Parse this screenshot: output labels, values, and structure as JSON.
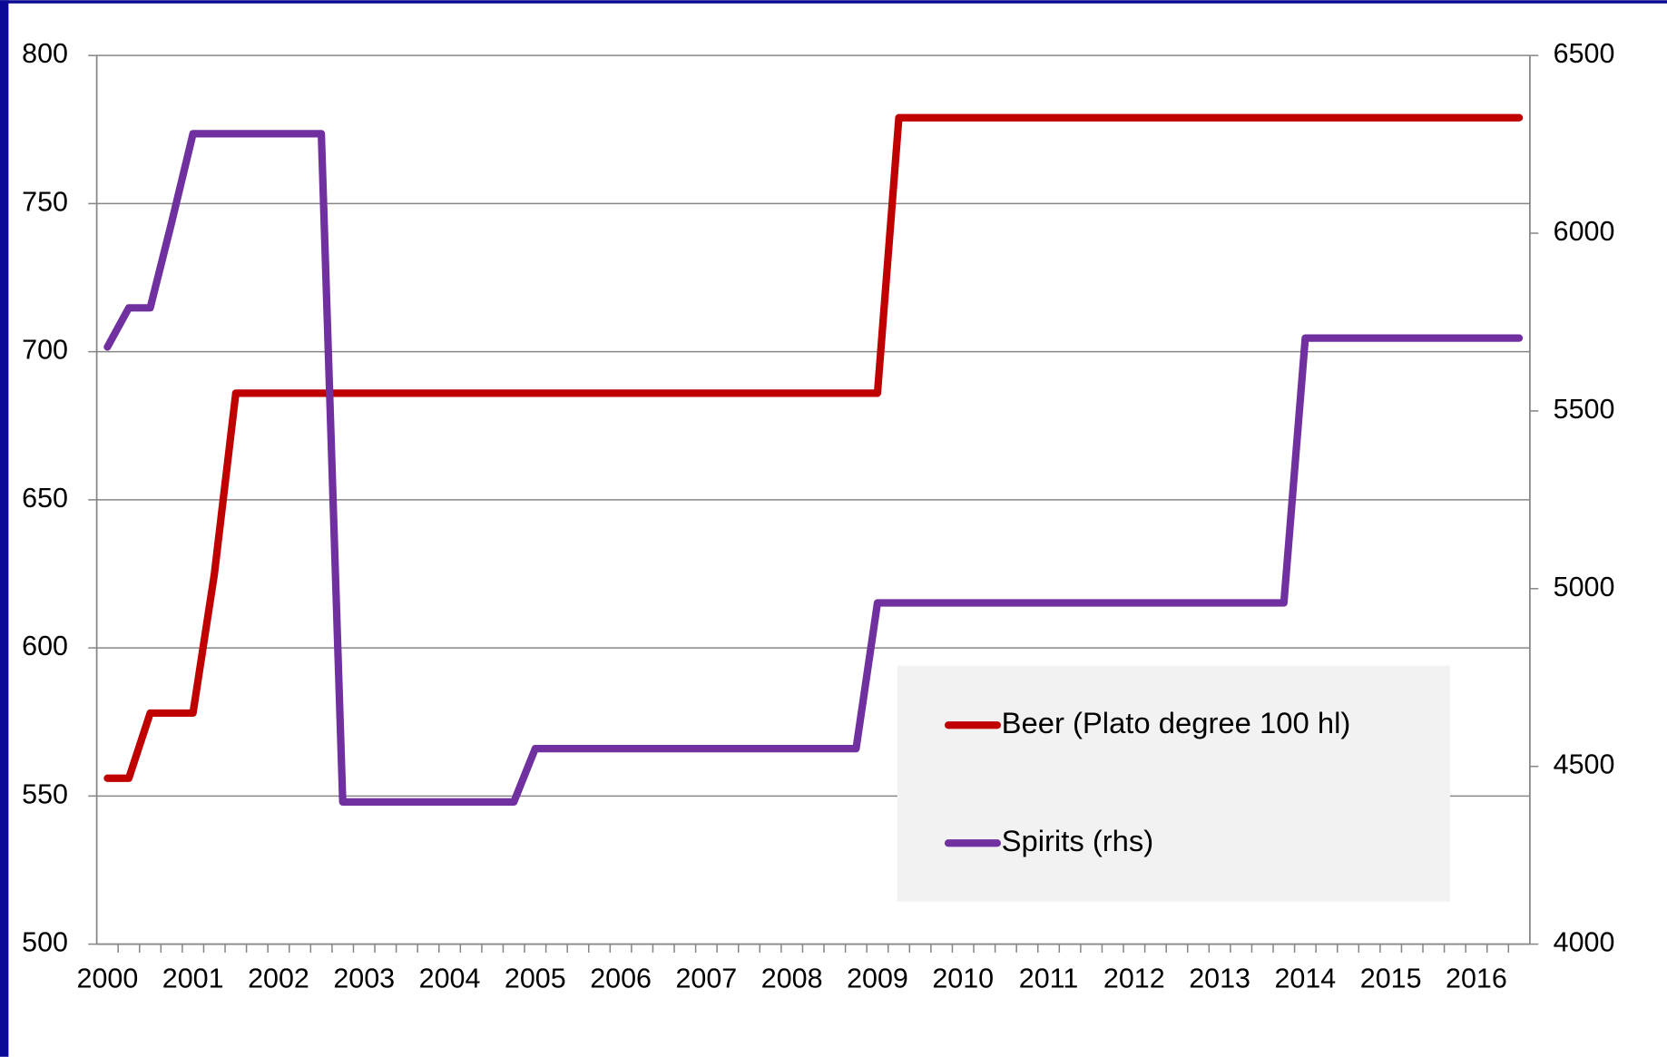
{
  "chart_data": {
    "type": "line",
    "categories": [
      "2000",
      null,
      null,
      null,
      "2001",
      null,
      null,
      null,
      "2002",
      null,
      null,
      null,
      "2003",
      null,
      null,
      null,
      "2004",
      null,
      null,
      null,
      "2005",
      null,
      null,
      null,
      "2006",
      null,
      null,
      null,
      "2007",
      null,
      null,
      null,
      "2008",
      null,
      null,
      null,
      "2009",
      null,
      null,
      null,
      "2010",
      null,
      null,
      null,
      "2011",
      null,
      null,
      null,
      "2012",
      null,
      null,
      null,
      "2013",
      null,
      null,
      null,
      "2014",
      null,
      null,
      null,
      "2015",
      null,
      null,
      null,
      "2016",
      null,
      null
    ],
    "series": [
      {
        "name": "Beer (Plato degree 100 hl)",
        "color": "#c00000",
        "values": [
          556,
          556,
          578,
          578,
          578,
          625,
          686,
          686,
          686,
          686,
          686,
          686,
          686,
          686,
          686,
          686,
          686,
          686,
          686,
          686,
          686,
          686,
          686,
          686,
          686,
          686,
          686,
          686,
          686,
          686,
          686,
          686,
          686,
          686,
          686,
          686,
          686,
          779,
          779,
          779,
          779,
          779,
          779,
          779,
          779,
          779,
          779,
          779,
          779,
          779,
          779,
          779,
          779,
          779,
          779,
          779,
          779,
          779,
          779,
          779,
          779,
          779,
          779,
          779,
          779,
          779,
          779
        ]
      },
      {
        "name": "Spirits (rhs)",
        "color": "#7030a0",
        "axis": "y2",
        "values": [
          5680,
          5790,
          5790,
          6030,
          6280,
          6280,
          6280,
          6280,
          6280,
          6280,
          6280,
          4400,
          4400,
          4400,
          4400,
          4400,
          4400,
          4400,
          4400,
          4400,
          4550,
          4550,
          4550,
          4550,
          4550,
          4550,
          4550,
          4550,
          4550,
          4550,
          4550,
          4550,
          4550,
          4550,
          4550,
          4550,
          4960,
          4960,
          4960,
          4960,
          4960,
          4960,
          4960,
          4960,
          4960,
          4960,
          4960,
          4960,
          4960,
          4960,
          4960,
          4960,
          4960,
          4960,
          4960,
          4960,
          5705,
          5705,
          5705,
          5705,
          5705,
          5705,
          5705,
          5705,
          5705,
          5705,
          5705
        ]
      }
    ],
    "ylim": [
      500,
      800
    ],
    "yticks": [
      500,
      550,
      600,
      650,
      700,
      750,
      800
    ],
    "y2lim": [
      4000,
      6500
    ],
    "y2ticks": [
      4000,
      4500,
      5000,
      5500,
      6000,
      6500
    ],
    "grid": true,
    "legend": "lower-right"
  }
}
